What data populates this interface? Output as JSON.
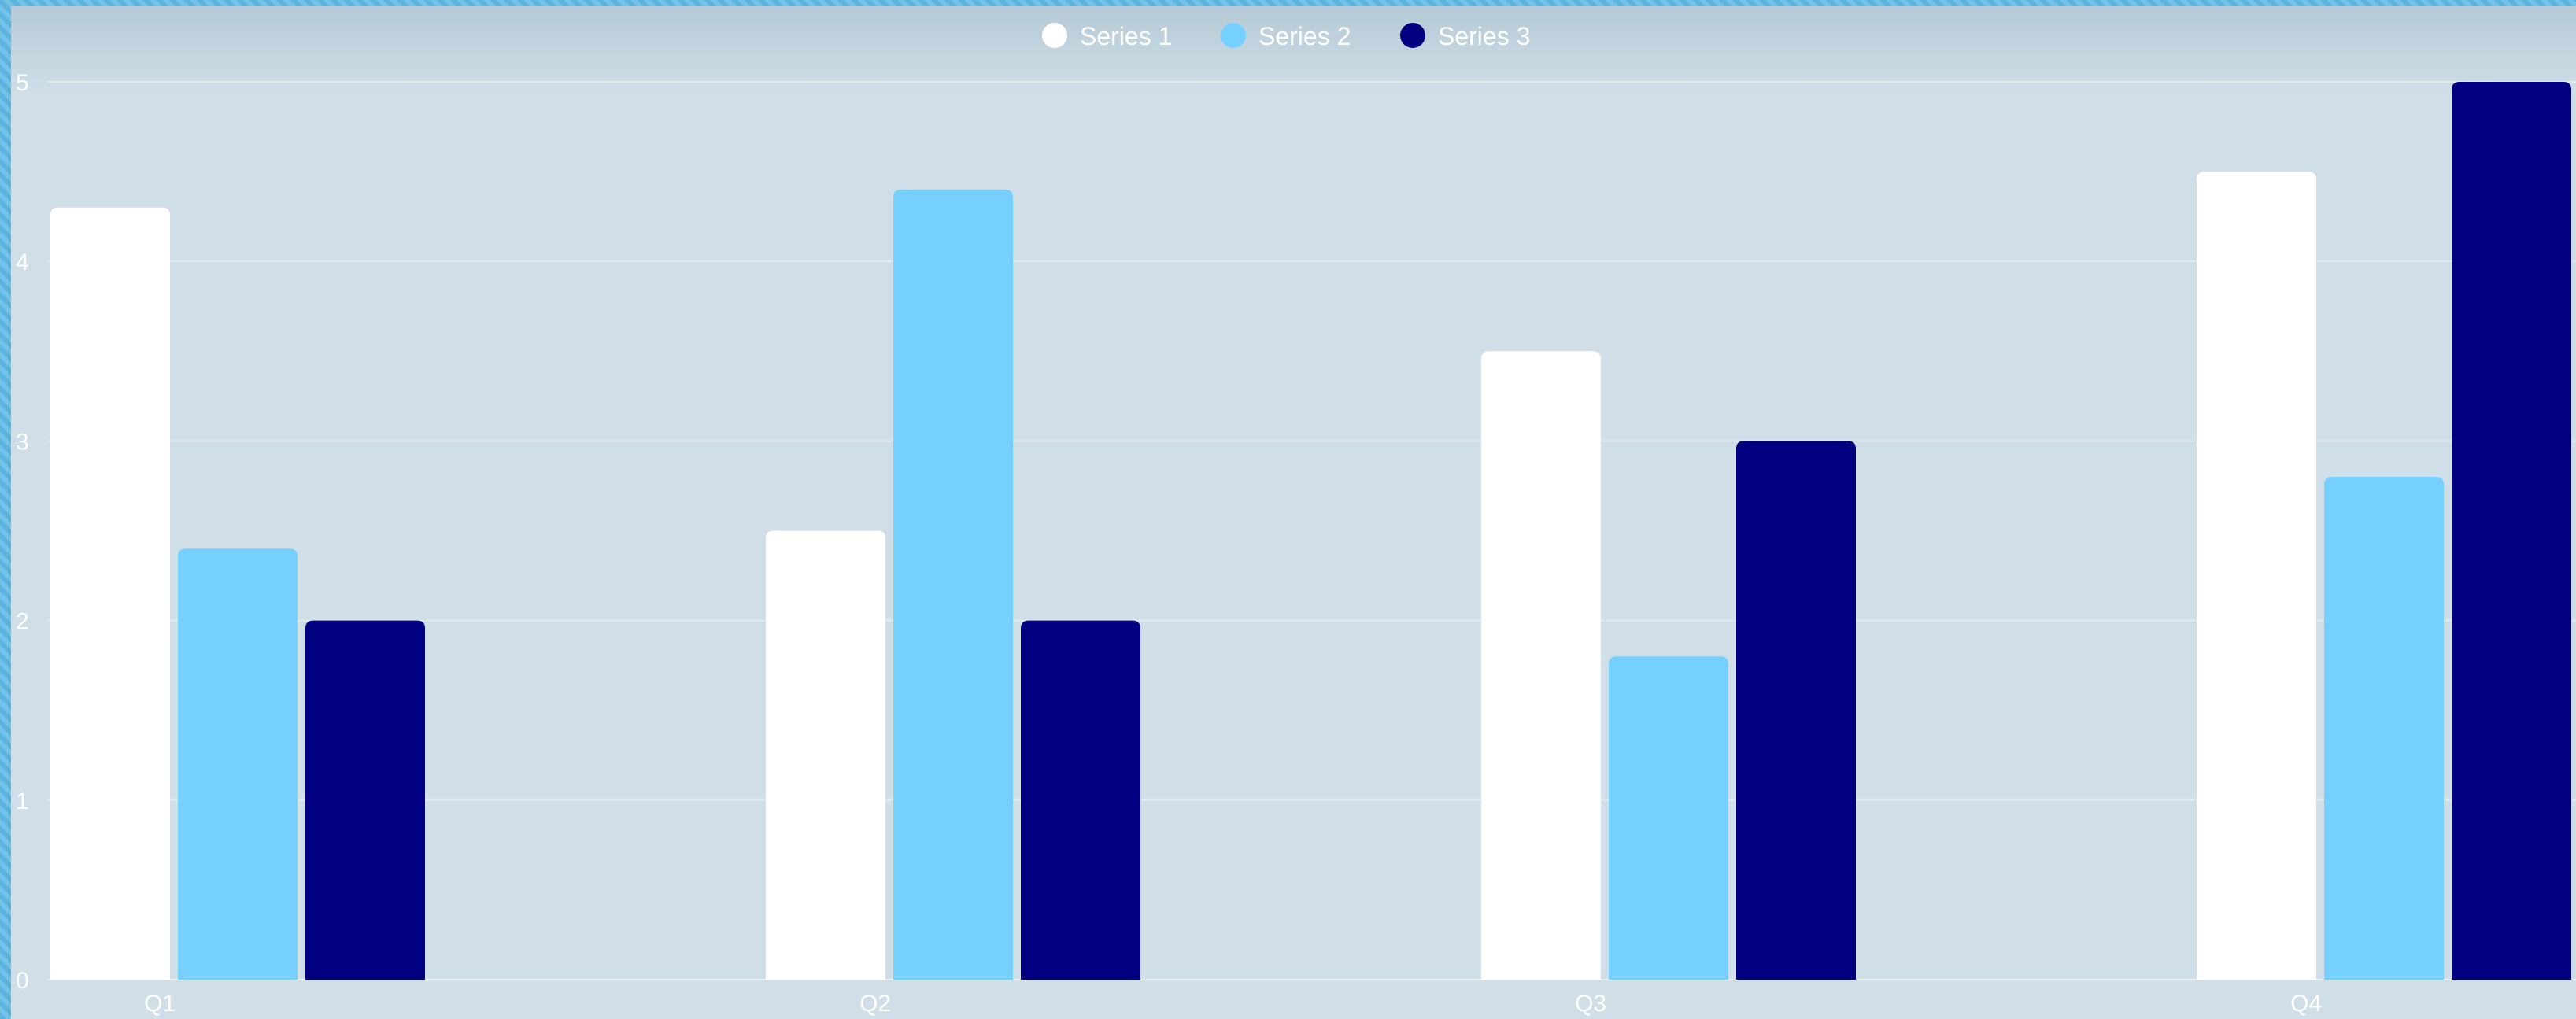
{
  "chart_data": {
    "type": "bar",
    "categories": [
      "Q1",
      "Q2",
      "Q3",
      "Q4"
    ],
    "series": [
      {
        "name": "Series 1",
        "values": [
          4.3,
          2.5,
          3.5,
          4.5
        ],
        "color": "#ffffff"
      },
      {
        "name": "Series 2",
        "values": [
          2.4,
          4.4,
          1.8,
          2.8
        ],
        "color": "#76d0ff"
      },
      {
        "name": "Series 3",
        "values": [
          2.0,
          2.0,
          3.0,
          5.0
        ],
        "color": "#000080"
      }
    ],
    "yticks": [
      "0",
      "1",
      "2",
      "3",
      "4",
      "5"
    ],
    "ylim": [
      0,
      5
    ],
    "grid": true,
    "legend_position": "top-center",
    "title": "",
    "xlabel": "",
    "ylabel": ""
  },
  "colors": {
    "background": "#cfdee7",
    "frame": "#5ab4de",
    "gridline": "#dfe9ef",
    "text": "#ffffff"
  }
}
